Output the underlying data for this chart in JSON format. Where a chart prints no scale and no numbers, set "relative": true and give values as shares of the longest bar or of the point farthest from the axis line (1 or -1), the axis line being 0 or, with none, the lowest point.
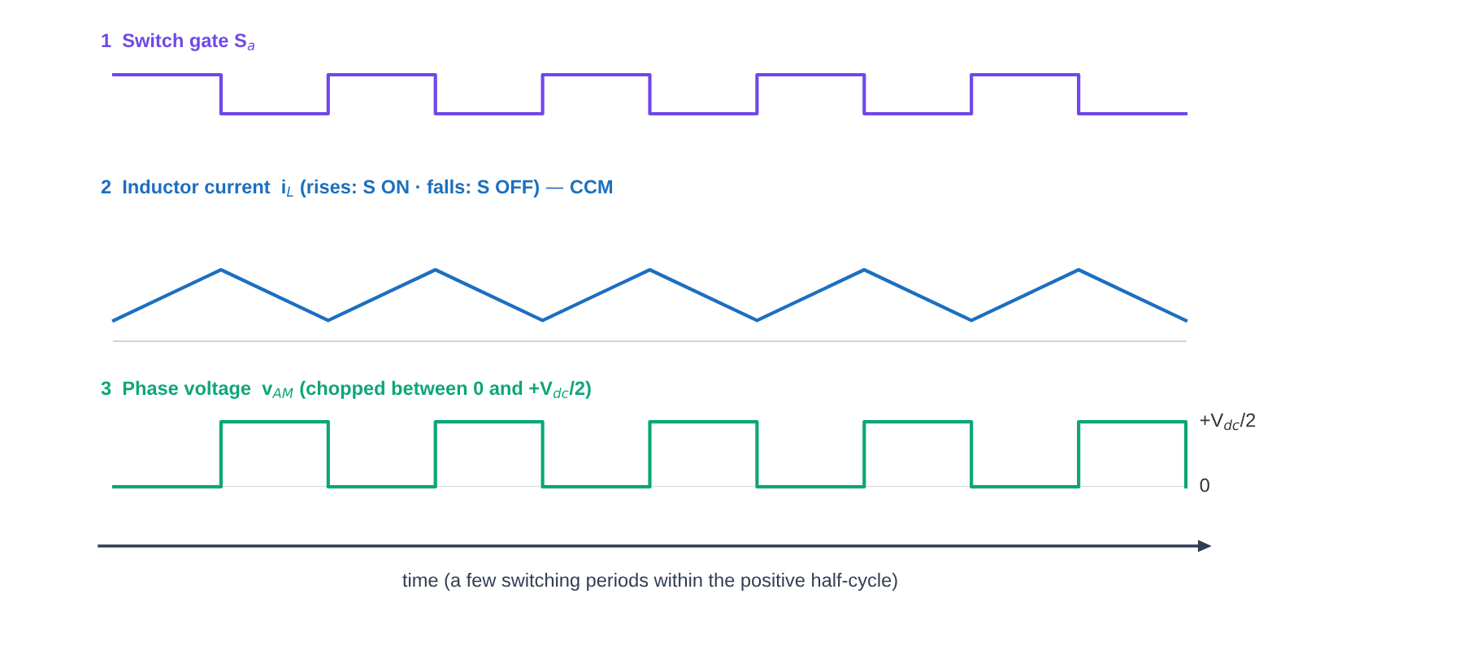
{
  "chart_data": [
    {
      "type": "step",
      "title": "1  Switch gate S$_{a}$",
      "relative": true,
      "categories": [
        null,
        null,
        null,
        null,
        null,
        null,
        null,
        null,
        null,
        null,
        null
      ],
      "series": [
        {
          "color": "#7048e8",
          "values": [
            1,
            0,
            1,
            0,
            1,
            0,
            1,
            0,
            1,
            0,
            0
          ]
        }
      ]
    },
    {
      "type": "line",
      "title": "2  Inductor current  i$_{L}$ (rises: S ON · falls: S OFF) — CCM",
      "relative": true,
      "categories": [
        null,
        null,
        null,
        null,
        null,
        null,
        null,
        null,
        null,
        null,
        null
      ],
      "series": [
        {
          "color": "#1c6fbf",
          "values": [
            0.29,
            1,
            0.29,
            1,
            0.29,
            1,
            0.29,
            1,
            0.29,
            1,
            0.29
          ]
        }
      ]
    },
    {
      "type": "step",
      "title": "3  Phase voltage  v$_{AM}$ (chopped between 0 and +V$_{dc}$/2)",
      "xlabel": "time (a few switching periods within the positive half-cycle)",
      "relative": true,
      "annotations": [
        "+V$_{dc}$/2"
      ],
      "ref_lines": [
        {
          "axis": "y",
          "value": 0,
          "label": "0",
          "color": "#cbd5e1"
        }
      ],
      "categories": [
        null,
        null,
        null,
        null,
        null,
        null,
        null,
        null,
        null,
        null,
        null
      ],
      "series": [
        {
          "color": "#0ca678",
          "values": [
            0,
            1,
            0,
            1,
            0,
            1,
            0,
            1,
            0,
            1,
            0
          ]
        }
      ]
    }
  ]
}
